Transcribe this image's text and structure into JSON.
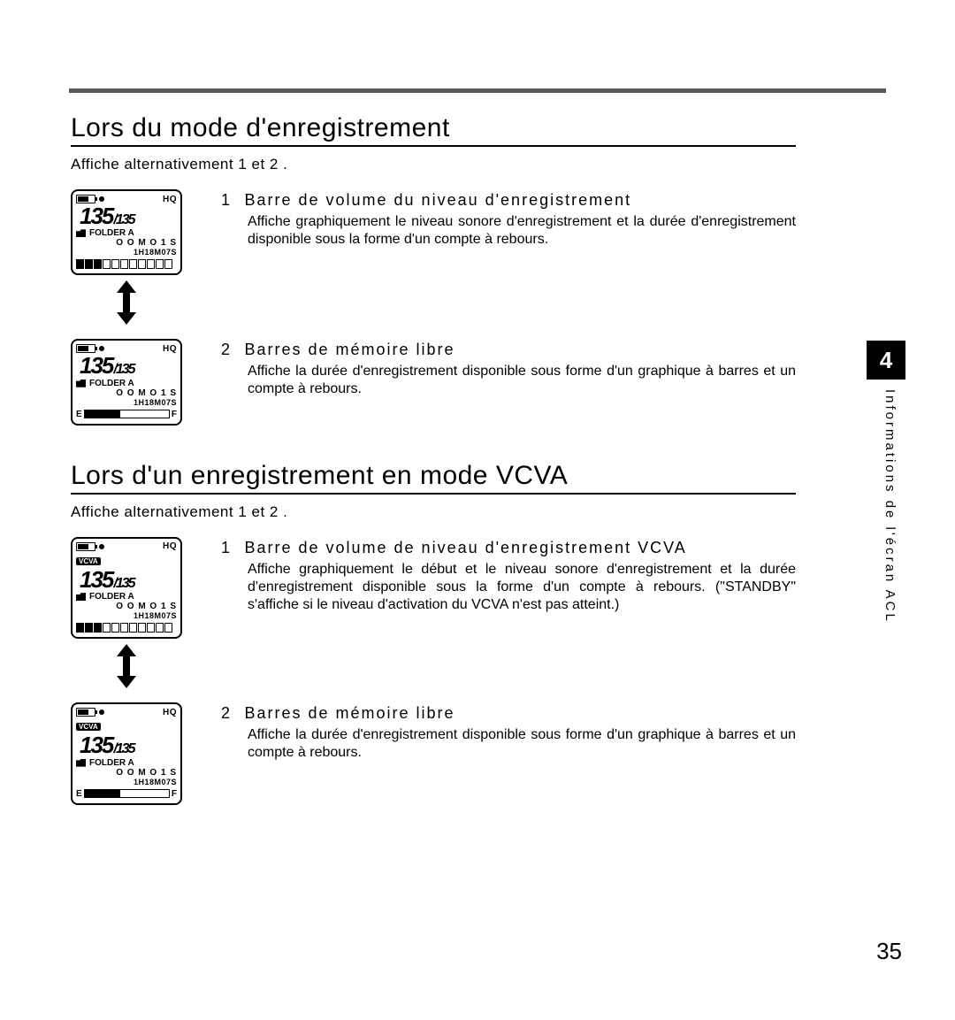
{
  "page": {
    "number": "35"
  },
  "side": {
    "chapter": "4",
    "label": "Informations de l'écran ACL"
  },
  "lcd_common": {
    "hq": "HQ",
    "vcva": "VCVA",
    "digits_main": "135",
    "digits_sub": "/135",
    "folder": "FOLDER A",
    "time1": "O O M O 1 S",
    "time2": "1H18M07S",
    "e": "E",
    "f": "F",
    "segment_count": 11,
    "segments_filled": 3,
    "ef_fill_pct": 42,
    "colors": {
      "fg": "#000000",
      "bg": "#ffffff",
      "rule": "#5a5a5a"
    }
  },
  "sections": [
    {
      "title": "Lors du mode d'enregistrement",
      "sub": "Affiche alternativement 1  et 2 .",
      "items": [
        {
          "num": "1",
          "title": "Barre de volume du niveau d'enregistrement",
          "body": "Affiche graphiquement le niveau sonore d'enregistrement et la durée d'enregistrement disponible sous la forme d'un compte à rebours.",
          "lcd_variant": "segments",
          "show_vcva": false
        },
        {
          "num": "2",
          "title": "Barres de mémoire libre",
          "body": "Affiche la durée d'enregistrement disponible sous forme d'un graphique à barres et un compte à rebours.",
          "lcd_variant": "ef",
          "show_vcva": false
        }
      ]
    },
    {
      "title": "Lors d'un enregistrement en mode VCVA",
      "sub": "Affiche alternativement 1  et 2 .",
      "items": [
        {
          "num": "1",
          "title": "Barre de volume de niveau d'enregistrement VCVA",
          "body": "Affiche graphiquement le début et le niveau sonore d'enregistrement et la durée d'enregistrement disponible sous la forme d'un compte à rebours. (\"STANDBY\" s'affiche si le niveau d'activation du VCVA n'est pas atteint.)",
          "lcd_variant": "segments",
          "show_vcva": true
        },
        {
          "num": "2",
          "title": "Barres de mémoire libre",
          "body": "Affiche la durée d'enregistrement disponible sous forme d'un graphique à barres et un compte à rebours.",
          "lcd_variant": "ef",
          "show_vcva": true
        }
      ]
    }
  ]
}
